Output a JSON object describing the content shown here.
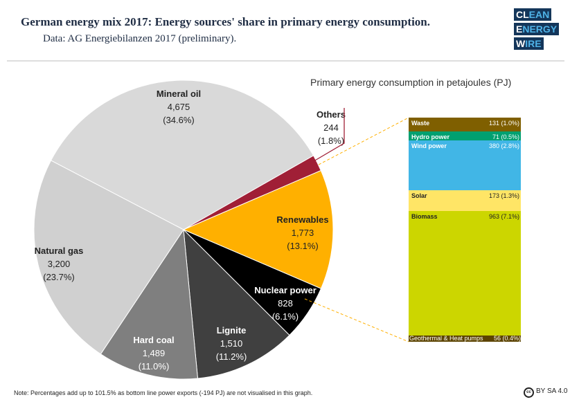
{
  "header": {
    "title": "German energy mix 2017: Energy sources' share in primary energy consumption.",
    "subtitle": "Data: AG Energiebilanzen 2017 (preliminary).",
    "logo": [
      "CLEAN",
      "ENERGY",
      "WIRE"
    ]
  },
  "chart_data": [
    {
      "type": "pie",
      "unit": "PJ",
      "slices": [
        {
          "name": "Mineral oil",
          "value": 4675,
          "label_value": "4,675",
          "pct": "(34.6%)",
          "color": "#d9d9d9"
        },
        {
          "name": "Others",
          "value": 244,
          "label_value": "244",
          "pct": "(1.8%)",
          "color": "#a01f36"
        },
        {
          "name": "Renewables",
          "value": 1773,
          "label_value": "1,773",
          "pct": "(13.1%)",
          "color": "#ffb000"
        },
        {
          "name": "Nuclear power",
          "value": 828,
          "label_value": "828",
          "pct": "(6.1%)",
          "color": "#000000"
        },
        {
          "name": "Lignite",
          "value": 1510,
          "label_value": "1,510",
          "pct": "(11.2%)",
          "color": "#404040"
        },
        {
          "name": "Hard coal",
          "value": 1489,
          "label_value": "1,489",
          "pct": "(11.0%)",
          "color": "#7f7f7f"
        },
        {
          "name": "Natural gas",
          "value": 3200,
          "label_value": "3,200",
          "pct": "(23.7%)",
          "color": "#d0d0d0"
        }
      ]
    },
    {
      "type": "bar",
      "stacked": true,
      "title": "Primary energy consumption in petajoules (PJ)",
      "segments": [
        {
          "name": "Waste",
          "value": 131,
          "label": "131 (1.0%)",
          "color": "#7f5f00"
        },
        {
          "name": "Hydro power",
          "value": 71,
          "label": "71 (0.5%)",
          "color": "#00a070"
        },
        {
          "name": "Wind power",
          "value": 380,
          "label": "380 (2.8%)",
          "color": "#41b6e6"
        },
        {
          "name": "Solar",
          "value": 173,
          "label": "173 (1.3%)",
          "color": "#ffe566"
        },
        {
          "name": "Biomass",
          "value": 963,
          "label": "963 (7.1%)",
          "color": "#ccd600"
        },
        {
          "name": "Geothermal & Heat pumps",
          "value": 56,
          "label": "56 (0.4%)",
          "color": "#5c4400"
        }
      ]
    }
  ],
  "footer": {
    "note": "Note: Percentages add up to 101.5% as bottom line power exports (-194 PJ) are not visualised in this graph.",
    "license": "BY SA 4.0"
  }
}
